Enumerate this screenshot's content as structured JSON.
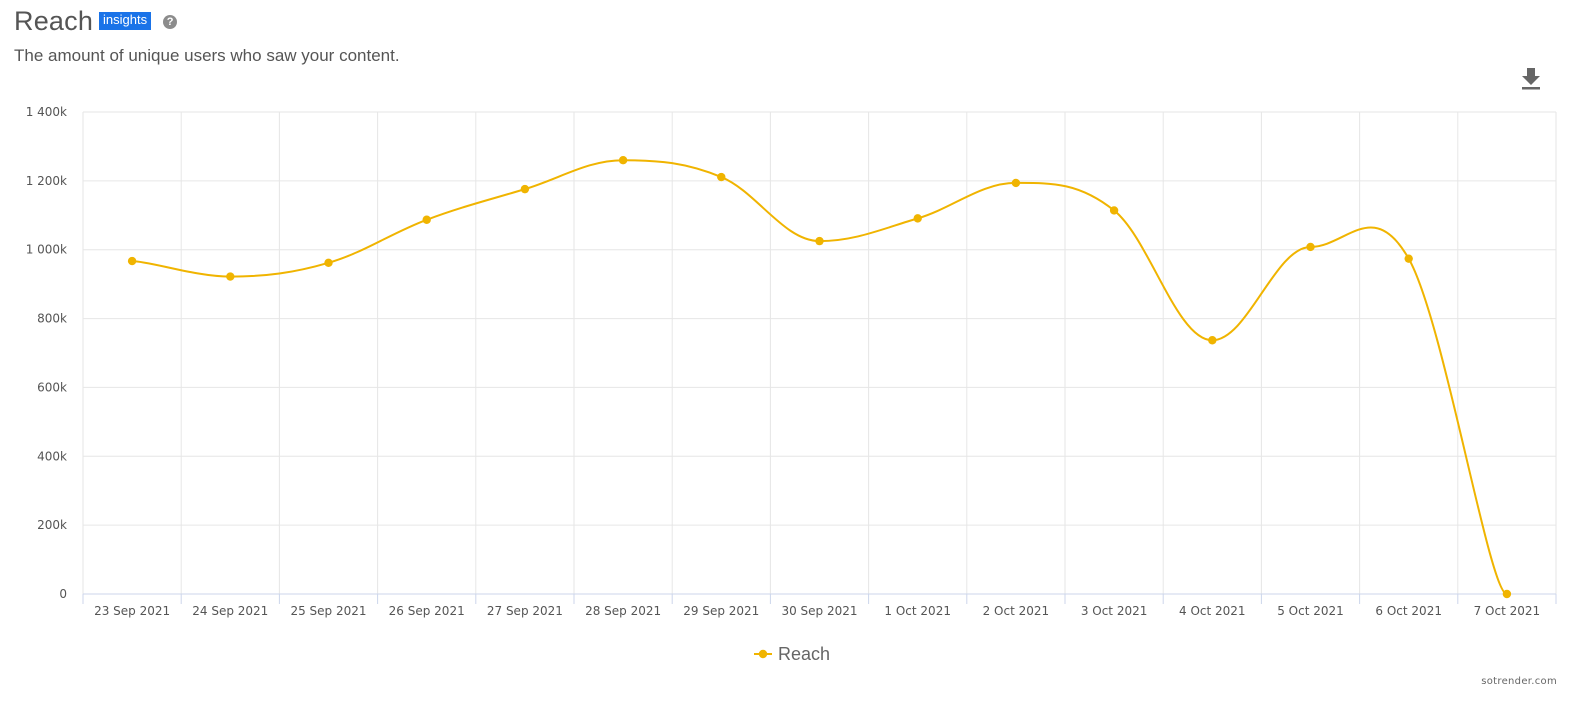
{
  "header": {
    "title": "Reach",
    "badge": "insights",
    "help_glyph": "?",
    "subtitle": "The amount of unique users who saw your content."
  },
  "toolbar": {
    "download_icon": "download-icon"
  },
  "brand": "sotrender.com",
  "colors": {
    "series": "#f0b400",
    "grid": "#e6e6e6",
    "axis": "#ccd6eb",
    "badge": "#1a73e8"
  },
  "chart_data": {
    "type": "line",
    "title": "",
    "xlabel": "",
    "ylabel": "",
    "categories": [
      "23 Sep 2021",
      "24 Sep 2021",
      "25 Sep 2021",
      "26 Sep 2021",
      "27 Sep 2021",
      "28 Sep 2021",
      "29 Sep 2021",
      "30 Sep 2021",
      "1 Oct 2021",
      "2 Oct 2021",
      "3 Oct 2021",
      "4 Oct 2021",
      "5 Oct 2021",
      "6 Oct 2021",
      "7 Oct 2021"
    ],
    "series": [
      {
        "name": "Reach",
        "color": "#f0b400",
        "values": [
          967000,
          922000,
          962000,
          1087000,
          1176000,
          1260000,
          1211000,
          1025000,
          1091000,
          1194000,
          1114000,
          737000,
          1008000,
          974000,
          0
        ]
      }
    ],
    "ylim": [
      0,
      1400000
    ],
    "yticks": [
      0,
      200000,
      400000,
      600000,
      800000,
      1000000,
      1200000,
      1400000
    ],
    "ytick_labels": [
      "0",
      "200k",
      "400k",
      "600k",
      "800k",
      "1 000k",
      "1 200k",
      "1 400k"
    ],
    "grid": true,
    "legend": "bottom-center",
    "smooth": true
  }
}
